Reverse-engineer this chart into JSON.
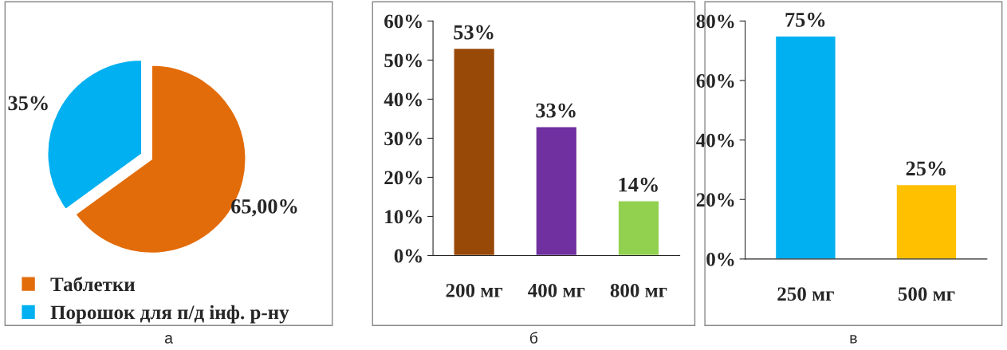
{
  "chart_data": [
    {
      "type": "pie",
      "categories": [
        "Таблетки",
        "Порошок для п/д інф. р-ну"
      ],
      "values": [
        65,
        35
      ],
      "colors": [
        "#e36c0a",
        "#00b0f0"
      ],
      "value_labels": [
        "65,00%",
        "35%"
      ],
      "legend": "bottom left",
      "annotations": [
        "а"
      ]
    },
    {
      "type": "bar",
      "categories": [
        "200 мг",
        "400 мг",
        "800 мг"
      ],
      "values": [
        53,
        33,
        14
      ],
      "colors": [
        "#984807",
        "#7030a0",
        "#92d050"
      ],
      "ylim": [
        0,
        60
      ],
      "yticks": [
        {
          "value": 0,
          "label": "0%"
        },
        {
          "value": 10,
          "label": "10%"
        },
        {
          "value": 20,
          "label": "20%"
        },
        {
          "value": 30,
          "label": "30%"
        },
        {
          "value": 40,
          "label": "40%"
        },
        {
          "value": 50,
          "label": "50%"
        },
        {
          "value": 60,
          "label": "60%"
        }
      ],
      "value_labels": [
        "53%",
        "33%",
        "14%"
      ],
      "annotations": [
        "б"
      ]
    },
    {
      "type": "bar",
      "categories": [
        "250 мг",
        "500 мг"
      ],
      "values": [
        75,
        25
      ],
      "colors": [
        "#00b0f0",
        "#ffc000"
      ],
      "ylim": [
        0,
        80
      ],
      "yticks": [
        {
          "value": 0,
          "label": "0%"
        },
        {
          "value": 20,
          "label": "20%"
        },
        {
          "value": 40,
          "label": "40%"
        },
        {
          "value": 60,
          "label": "60%"
        },
        {
          "value": 80,
          "label": "80%"
        }
      ],
      "value_labels": [
        "75%",
        "25%"
      ],
      "annotations": [
        "в"
      ]
    }
  ]
}
